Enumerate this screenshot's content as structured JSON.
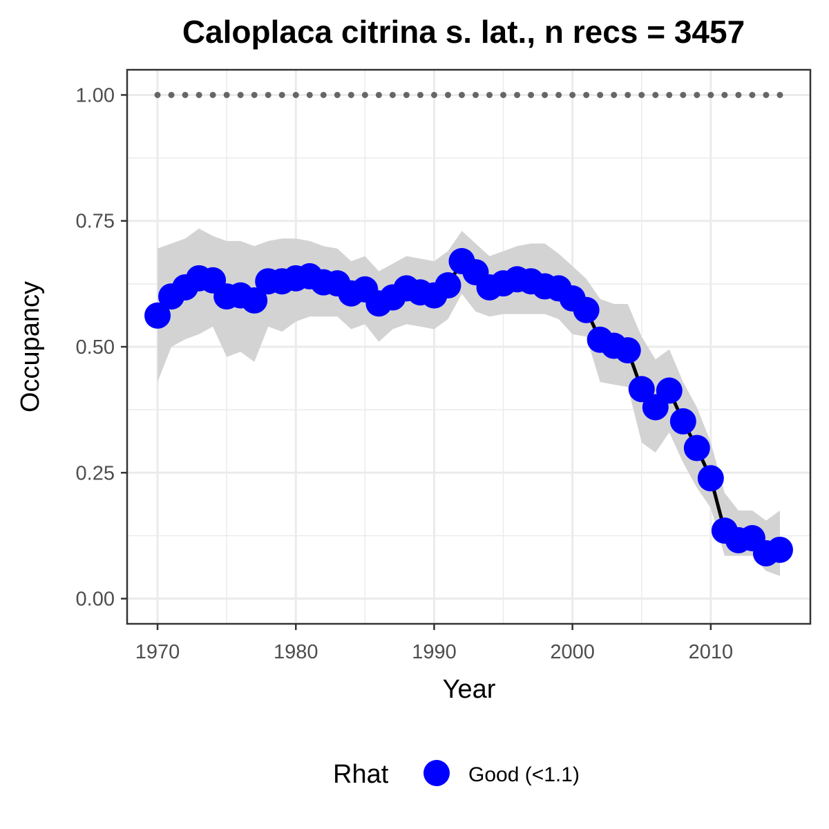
{
  "chart_data": {
    "type": "line",
    "title": "Caloplaca citrina s. lat., n recs = 3457",
    "xlabel": "Year",
    "ylabel": "Occupancy",
    "xlim": [
      1967.8,
      2017.2
    ],
    "ylim": [
      -0.05,
      1.05
    ],
    "x_ticks": [
      1970,
      1980,
      1990,
      2000,
      2010
    ],
    "y_ticks": [
      0.0,
      0.25,
      0.5,
      0.75,
      1.0
    ],
    "x_tick_labels": [
      "1970",
      "1980",
      "1990",
      "2000",
      "2010"
    ],
    "y_tick_labels": [
      "0.00",
      "0.25",
      "0.50",
      "0.75",
      "1.00"
    ],
    "grid": true,
    "legend_position": "bottom",
    "legend": {
      "title": "Rhat",
      "entries": [
        {
          "label": "Good (<1.1)",
          "color": "#0000ff"
        }
      ]
    },
    "colors": {
      "points": "#0000ff",
      "line": "#000000",
      "ribbon": "#d3d3d3",
      "reference": "#666666",
      "grid": "#ebebeb",
      "panel_border": "#333333"
    },
    "x": [
      1970,
      1971,
      1972,
      1973,
      1974,
      1975,
      1976,
      1977,
      1978,
      1979,
      1980,
      1981,
      1982,
      1983,
      1984,
      1985,
      1986,
      1987,
      1988,
      1989,
      1990,
      1991,
      1992,
      1993,
      1994,
      1995,
      1996,
      1997,
      1998,
      1999,
      2000,
      2001,
      2002,
      2003,
      2004,
      2005,
      2006,
      2007,
      2008,
      2009,
      2010,
      2011,
      2012,
      2013,
      2014,
      2015
    ],
    "series": [
      {
        "name": "Occupancy",
        "values": [
          0.562,
          0.6,
          0.618,
          0.636,
          0.632,
          0.6,
          0.602,
          0.592,
          0.63,
          0.63,
          0.636,
          0.64,
          0.628,
          0.626,
          0.606,
          0.614,
          0.586,
          0.598,
          0.616,
          0.608,
          0.602,
          0.622,
          0.67,
          0.648,
          0.618,
          0.626,
          0.634,
          0.63,
          0.62,
          0.616,
          0.596,
          0.573,
          0.514,
          0.502,
          0.493,
          0.416,
          0.38,
          0.413,
          0.352,
          0.299,
          0.239,
          0.135,
          0.116,
          0.12,
          0.09,
          0.097
        ],
        "lower": [
          0.43,
          0.5,
          0.515,
          0.525,
          0.54,
          0.48,
          0.49,
          0.47,
          0.54,
          0.53,
          0.55,
          0.56,
          0.56,
          0.56,
          0.535,
          0.545,
          0.51,
          0.535,
          0.545,
          0.54,
          0.535,
          0.555,
          0.605,
          0.57,
          0.56,
          0.565,
          0.565,
          0.565,
          0.565,
          0.555,
          0.525,
          0.52,
          0.43,
          0.425,
          0.42,
          0.31,
          0.29,
          0.33,
          0.27,
          0.22,
          0.18,
          0.085,
          0.085,
          0.085,
          0.055,
          0.045
        ],
        "upper": [
          0.695,
          0.705,
          0.715,
          0.735,
          0.72,
          0.71,
          0.71,
          0.7,
          0.71,
          0.715,
          0.715,
          0.71,
          0.7,
          0.695,
          0.67,
          0.68,
          0.65,
          0.665,
          0.68,
          0.675,
          0.67,
          0.69,
          0.73,
          0.705,
          0.68,
          0.69,
          0.7,
          0.705,
          0.705,
          0.685,
          0.66,
          0.635,
          0.595,
          0.585,
          0.585,
          0.52,
          0.475,
          0.495,
          0.43,
          0.38,
          0.31,
          0.21,
          0.175,
          0.175,
          0.155,
          0.175
        ]
      },
      {
        "name": "reference",
        "values": [
          1,
          1,
          1,
          1,
          1,
          1,
          1,
          1,
          1,
          1,
          1,
          1,
          1,
          1,
          1,
          1,
          1,
          1,
          1,
          1,
          1,
          1,
          1,
          1,
          1,
          1,
          1,
          1,
          1,
          1,
          1,
          1,
          1,
          1,
          1,
          1,
          1,
          1,
          1,
          1,
          1,
          1,
          1,
          1,
          1,
          1
        ]
      }
    ]
  }
}
